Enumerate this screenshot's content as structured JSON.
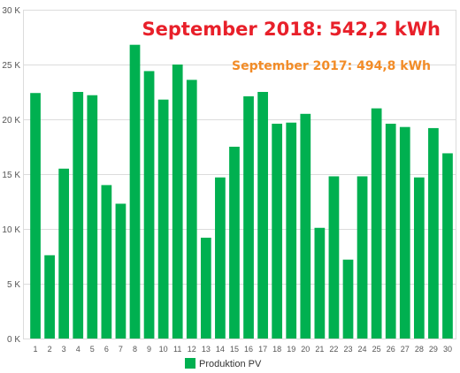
{
  "chart_data": {
    "type": "bar",
    "categories": [
      "1",
      "2",
      "3",
      "4",
      "5",
      "6",
      "7",
      "8",
      "9",
      "10",
      "11",
      "12",
      "13",
      "14",
      "15",
      "16",
      "17",
      "18",
      "19",
      "20",
      "21",
      "22",
      "23",
      "24",
      "25",
      "26",
      "27",
      "28",
      "29",
      "30"
    ],
    "series": [
      {
        "name": "Produktion PV",
        "color": "#00b050",
        "values": [
          22400,
          7600,
          15500,
          22500,
          22200,
          14000,
          12300,
          26800,
          24400,
          21800,
          25000,
          23600,
          9200,
          14700,
          17500,
          22100,
          22500,
          19600,
          19700,
          20500,
          10100,
          14800,
          7200,
          14800,
          21000,
          19600,
          19300,
          14700,
          19200,
          16900
        ]
      }
    ],
    "ylim": [
      0,
      30000
    ],
    "yticks": [
      {
        "value": 0,
        "label": "0 K"
      },
      {
        "value": 5000,
        "label": "5 K"
      },
      {
        "value": 10000,
        "label": "10 K"
      },
      {
        "value": 15000,
        "label": "15 K"
      },
      {
        "value": 20000,
        "label": "20 K"
      },
      {
        "value": 25000,
        "label": "25 K"
      },
      {
        "value": 30000,
        "label": "30 K"
      }
    ],
    "grid": true,
    "legend": {
      "label": "Produktion PV",
      "placement": "bottom-center"
    },
    "annotations": [
      {
        "text": "September 2018: 542,2 kWh",
        "color": "#e8202a",
        "style": "main"
      },
      {
        "text": "September 2017: 494,8 kWh",
        "color": "#f28c28",
        "style": "sub"
      }
    ]
  }
}
